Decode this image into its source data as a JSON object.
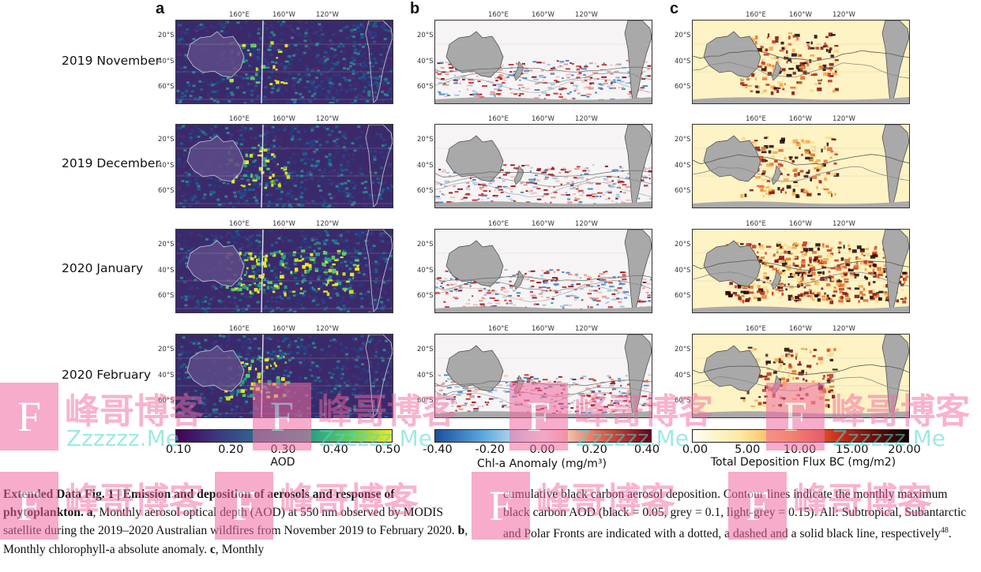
{
  "panels": {
    "a": "a",
    "b": "b",
    "c": "c"
  },
  "rows": [
    "2019 November",
    "2019 December",
    "2020 January",
    "2020 February"
  ],
  "lon_labels": [
    "160°E",
    "160°W",
    "120°W"
  ],
  "lat_labels": [
    "20°S",
    "40°S",
    "60°S"
  ],
  "colorbars": {
    "a": {
      "ticks": [
        "0.10",
        "0.20",
        "0.30",
        "0.40",
        "0.50"
      ],
      "label": "AOD"
    },
    "b": {
      "ticks": [
        "-0.40",
        "-0.20",
        "0.00",
        "0.20",
        "0.40"
      ],
      "label": "Chl-a Anomaly (mg/m³)"
    },
    "c": {
      "ticks": [
        "0.00",
        "5.00",
        "10.00",
        "15.00",
        "20.00"
      ],
      "label": "Total Deposition Flux BC (mg/m2)"
    }
  },
  "caption": {
    "left": {
      "title": "Extended Data Fig. 1 | Emission and deposition of aerosols and response of phytoplankton.",
      "a_letter": "a",
      "a_text": ", Monthly aerosol optical depth (AOD) at 550 nm observed by MODIS satellite during the 2019–2020 Australian wildfires from November 2019 to February 2020. ",
      "b_letter": "b",
      "b_text": ", Monthly chlorophyll-a absolute anomaly. ",
      "c_letter": "c",
      "c_text": ", Monthly"
    },
    "right": {
      "text": "cumulative black carbon aerosol deposition. Contour lines indicate the monthly maximum black carbon AOD (black = 0.05, grey = 0.1, light-grey = 0.15). All: Subtropical, Subantarctic and Polar Fronts are indicated with a dotted, a dashed and a solid black line, respectively",
      "ref": "48",
      "end": "."
    }
  },
  "watermark": {
    "logo": "F",
    "name": "峰哥博客",
    "url": "Zzzzzz.Me"
  },
  "colors": {
    "aod_low": "#3b1f63",
    "aod_mid": "#2c8d8c",
    "aod_high": "#f7e81e",
    "chl_neg": "#3b7dc4",
    "chl_pos": "#b2182b",
    "bc_low": "#fffbe0",
    "bc_high": "#1a0000",
    "land": "#a9a9a9",
    "watermark_pink": "#f06aa0",
    "watermark_cyan": "#4fd8d0"
  }
}
